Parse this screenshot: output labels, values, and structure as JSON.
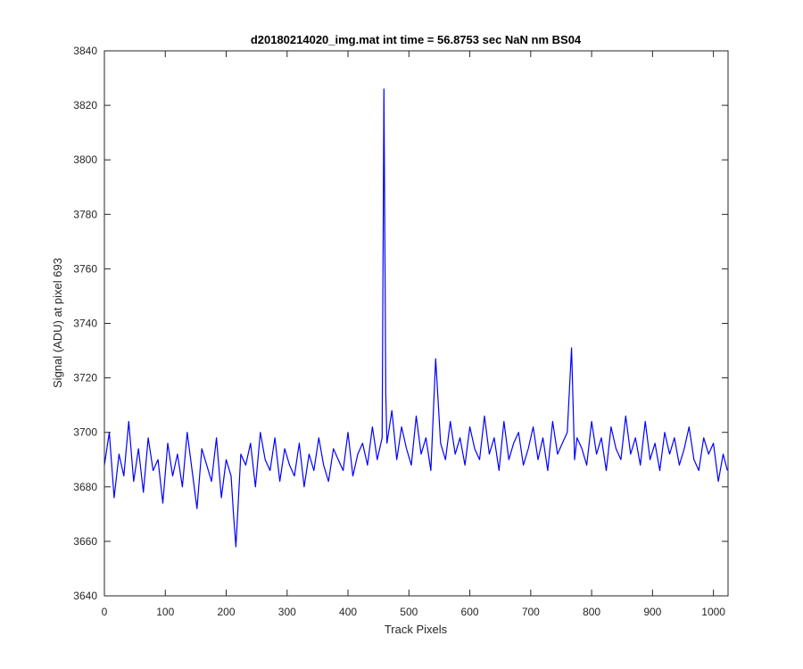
{
  "chart_data": {
    "type": "line",
    "title": "d20180214020_img.mat int time = 56.8753 sec  NaN nm BS04",
    "xlabel": "Track Pixels",
    "ylabel": "Signal (ADU) at pixel 693",
    "xlim": [
      0,
      1024
    ],
    "ylim": [
      3640,
      3840
    ],
    "xticks": [
      0,
      100,
      200,
      300,
      400,
      500,
      600,
      700,
      800,
      900,
      1000
    ],
    "yticks": [
      3640,
      3660,
      3680,
      3700,
      3720,
      3740,
      3760,
      3780,
      3800,
      3820,
      3840
    ],
    "grid": false,
    "line_color": "#0000ff",
    "series": [
      {
        "x": [
          0,
          8,
          16,
          24,
          32,
          40,
          48,
          56,
          64,
          72,
          80,
          88,
          96,
          104,
          112,
          120,
          128,
          136,
          144,
          152,
          160,
          168,
          176,
          184,
          192,
          200,
          208,
          212,
          216,
          224,
          232,
          240,
          248,
          256,
          264,
          272,
          280,
          288,
          296,
          304,
          312,
          320,
          328,
          336,
          344,
          352,
          360,
          368,
          376,
          384,
          392,
          400,
          408,
          416,
          424,
          432,
          440,
          448,
          456,
          459,
          462,
          464,
          472,
          480,
          488,
          496,
          504,
          512,
          520,
          528,
          536,
          544,
          552,
          560,
          568,
          576,
          584,
          592,
          600,
          608,
          616,
          624,
          632,
          640,
          648,
          656,
          664,
          672,
          680,
          688,
          696,
          704,
          712,
          720,
          728,
          736,
          744,
          752,
          760,
          767,
          772,
          776,
          784,
          792,
          800,
          808,
          816,
          824,
          832,
          840,
          848,
          856,
          864,
          872,
          880,
          888,
          896,
          904,
          912,
          920,
          928,
          936,
          944,
          952,
          960,
          968,
          976,
          984,
          992,
          1000,
          1008,
          1016,
          1023
        ],
        "values": [
          3688,
          3700,
          3676,
          3692,
          3684,
          3704,
          3682,
          3694,
          3678,
          3698,
          3686,
          3690,
          3674,
          3696,
          3684,
          3692,
          3680,
          3700,
          3686,
          3672,
          3694,
          3688,
          3682,
          3698,
          3676,
          3690,
          3684,
          3670,
          3658,
          3692,
          3688,
          3696,
          3680,
          3700,
          3690,
          3686,
          3698,
          3682,
          3694,
          3688,
          3684,
          3696,
          3680,
          3692,
          3686,
          3698,
          3688,
          3682,
          3694,
          3690,
          3686,
          3700,
          3684,
          3692,
          3696,
          3688,
          3702,
          3690,
          3698,
          3826,
          3714,
          3696,
          3708,
          3690,
          3702,
          3694,
          3688,
          3706,
          3692,
          3698,
          3686,
          3727,
          3696,
          3690,
          3704,
          3692,
          3698,
          3688,
          3702,
          3694,
          3690,
          3706,
          3692,
          3698,
          3686,
          3704,
          3690,
          3696,
          3700,
          3688,
          3694,
          3702,
          3690,
          3698,
          3686,
          3704,
          3692,
          3696,
          3700,
          3731,
          3690,
          3698,
          3694,
          3688,
          3704,
          3692,
          3698,
          3686,
          3702,
          3694,
          3690,
          3706,
          3692,
          3698,
          3688,
          3704,
          3690,
          3696,
          3686,
          3700,
          3692,
          3698,
          3688,
          3694,
          3702,
          3690,
          3686,
          3698,
          3692,
          3696,
          3682,
          3692,
          3686
        ]
      }
    ]
  }
}
